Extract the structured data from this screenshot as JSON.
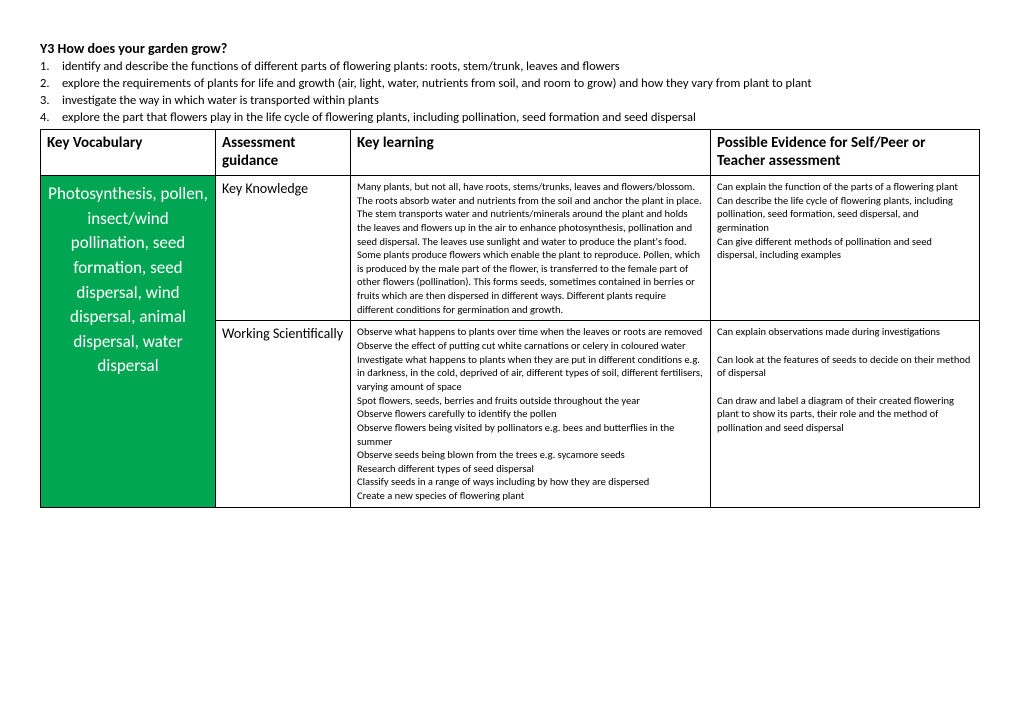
{
  "title": "Y3 How does your garden grow?",
  "objectives": [
    "identify and describe the functions of different parts of flowering plants: roots, stem/trunk, leaves and flowers",
    "explore the requirements of plants for life and growth (air, light, water, nutrients from soil, and room to grow) and how they vary from plant to plant",
    "investigate the way in which water is transported within plants",
    "explore the part that flowers play in the life cycle of flowering plants, including pollination, seed formation and seed dispersal"
  ],
  "headers": {
    "vocab": "Key Vocabulary",
    "assess": "Assessment guidance",
    "learn": "Key learning",
    "evid": "Possible Evidence for Self/Peer or Teacher assessment"
  },
  "vocab": "Photosynthesis, pollen, insect/wind pollination, seed formation, seed dispersal, wind dispersal, animal dispersal, water dispersal",
  "rows": [
    {
      "assess": "Key Knowledge",
      "learn": "Many plants, but not all, have roots, stems/trunks, leaves and flowers/blossom. The roots absorb water and nutrients from the soil and anchor the plant in place. The stem transports water and nutrients/minerals around the plant and holds the leaves and flowers up in the air to enhance photosynthesis, pollination and seed dispersal. The leaves use sunlight and water to produce the plant's food.  Some plants produce flowers which enable the plant to reproduce. Pollen, which is produced by the male part of the flower, is transferred to the female part of other flowers (pollination). This forms seeds, sometimes contained in berries or fruits which are then dispersed in different ways. Different plants require different conditions for germination and growth.",
      "evid": "Can explain the function of the parts of a flowering plant\nCan describe the life cycle of flowering plants, including pollination, seed formation, seed dispersal, and germination\nCan give different methods of pollination and seed dispersal, including examples"
    },
    {
      "assess": "Working Scientifically",
      "learn": "Observe what happens to plants over time when the leaves or roots are removed\nObserve the effect of putting cut white carnations or celery in coloured water\nInvestigate what happens to plants when they are put in different conditions e.g. in darkness, in the cold, deprived of air, different types of soil, different fertilisers, varying amount of space\nSpot flowers, seeds, berries and fruits outside throughout the year\nObserve flowers carefully to identify the pollen\nObserve flowers being visited by pollinators e.g. bees and butterflies in the summer\nObserve seeds being blown from the trees e.g. sycamore seeds\nResearch different types of seed dispersal\nClassify seeds in a range of ways including by how they are dispersed\nCreate a new species of flowering plant",
      "evid": "Can explain observations made during investigations\n\nCan look at the features of seeds to decide on their method of dispersal\n\nCan draw and label a diagram of their created flowering plant to show its parts, their role and the method of pollination and seed dispersal"
    }
  ]
}
